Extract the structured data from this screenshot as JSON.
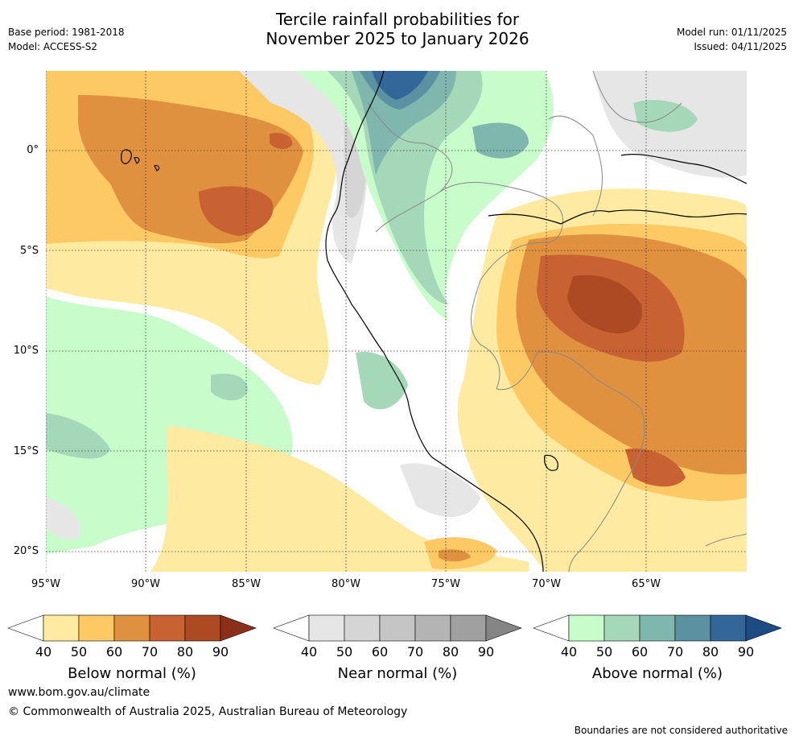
{
  "title": {
    "line1": "Tercile rainfall probabilities for",
    "line2": "November 2025 to January 2026"
  },
  "meta": {
    "base_period": "Base period: 1981-2018",
    "model": "Model: ACCESS-S2",
    "model_run": "Model run: 01/11/2025",
    "issued": "Issued: 04/11/2025"
  },
  "axes": {
    "lat_labels": [
      "0°",
      "5°S",
      "10°S",
      "15°S",
      "20°S"
    ],
    "lon_labels": [
      "95°W",
      "90°W",
      "85°W",
      "80°W",
      "75°W",
      "70°W",
      "65°W"
    ]
  },
  "colorbars": [
    {
      "name": "below",
      "title": "Below normal (%)",
      "ticks": [
        "40",
        "50",
        "60",
        "70",
        "80",
        "90"
      ],
      "colors": [
        "#ffffff",
        "#feeaa0",
        "#fdc965",
        "#e09140",
        "#c86232",
        "#ad4a24",
        "#8a3019"
      ]
    },
    {
      "name": "near",
      "title": "Near normal (%)",
      "ticks": [
        "40",
        "50",
        "60",
        "70",
        "80",
        "90"
      ],
      "colors": [
        "#ffffff",
        "#e6e6e6",
        "#d5d5d5",
        "#c5c5c5",
        "#b4b4b4",
        "#a0a0a0",
        "#858585"
      ]
    },
    {
      "name": "above",
      "title": "Above normal (%)",
      "ticks": [
        "40",
        "50",
        "60",
        "70",
        "80",
        "90"
      ],
      "colors": [
        "#ffffff",
        "#c8fccb",
        "#a4d8b8",
        "#7fb6ad",
        "#5b91a0",
        "#33679a",
        "#1d4c84"
      ]
    }
  ],
  "footer": {
    "url": "www.bom.gov.au/climate",
    "copyright": "© Commonwealth of Australia 2025, Australian Bureau of Meteorology",
    "disclaimer": "Boundaries are not considered authoritative"
  }
}
